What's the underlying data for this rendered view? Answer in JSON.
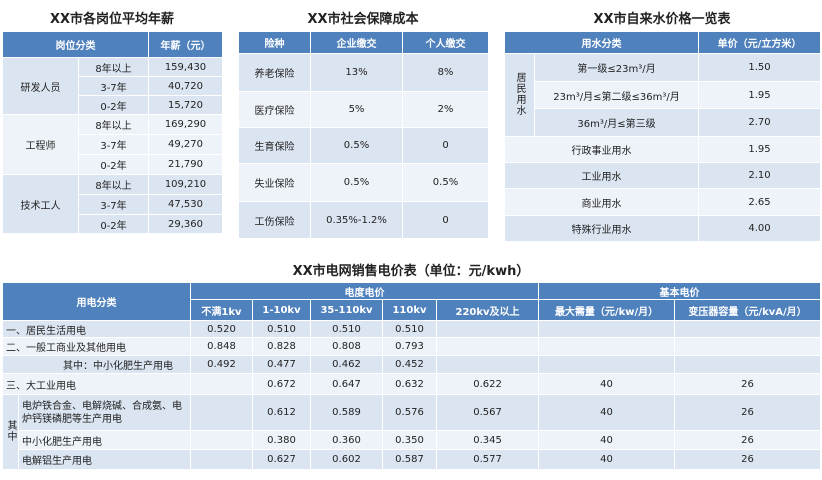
{
  "salary": {
    "title": "XX市各岗位平均年薪",
    "headers": [
      "岗位分类",
      "年薪（元）"
    ],
    "groups": [
      {
        "name": "研发人员",
        "rows": [
          [
            "8年以上",
            "159,430"
          ],
          [
            "3-7年",
            "40,720"
          ],
          [
            "0-2年",
            "15,720"
          ]
        ]
      },
      {
        "name": "工程师",
        "rows": [
          [
            "8年以上",
            "169,290"
          ],
          [
            "3-7年",
            "49,270"
          ],
          [
            "0-2年",
            "21,790"
          ]
        ]
      },
      {
        "name": "技术工人",
        "rows": [
          [
            "8年以上",
            "109,210"
          ],
          [
            "3-7年",
            "47,530"
          ],
          [
            "0-2年",
            "29,360"
          ]
        ]
      }
    ]
  },
  "social": {
    "title": "XX市社会保障成本",
    "headers": [
      "险种",
      "企业缴交",
      "个人缴交"
    ],
    "rows": [
      [
        "养老保险",
        "13%",
        "8%"
      ],
      [
        "医疗保险",
        "5%",
        "2%"
      ],
      [
        "生育保险",
        "0.5%",
        "0"
      ],
      [
        "失业保险",
        "0.5%",
        "0.5%"
      ],
      [
        "工伤保险",
        "0.35%-1.2%",
        "0"
      ]
    ]
  },
  "water": {
    "title": "XX市自来水价格一览表",
    "headers": [
      "用水分类",
      "单价（元/立方米）"
    ],
    "resident_label": "居民用水",
    "resident_rows": [
      [
        "第一级≤23m³/月",
        "1.50"
      ],
      [
        "23m³/月≤第二级≤36m³/月",
        "1.95"
      ],
      [
        "36m³/月≤第三级",
        "2.70"
      ]
    ],
    "other_rows": [
      [
        "行政事业用水",
        "1.95"
      ],
      [
        "工业用水",
        "2.10"
      ],
      [
        "商业用水",
        "2.65"
      ],
      [
        "特殊行业用水",
        "4.00"
      ]
    ]
  },
  "power": {
    "title": "XX市电网销售电价表（单位：元/kwh）",
    "header_category": "用电分类",
    "header_energy": "电度电价",
    "header_basic": "基本电价",
    "sub_headers": [
      "不满1kv",
      "1-10kv",
      "35-110kv",
      "110kv",
      "220kv及以上",
      "最大需量（元/kw/月）",
      "变压器容量（元/kvA/月）"
    ],
    "rows": [
      [
        "一、居民生活用电",
        "0.520",
        "0.510",
        "0.510",
        "0.510",
        "",
        "",
        ""
      ],
      [
        "二、一般工商业及其他用电",
        "0.848",
        "0.828",
        "0.808",
        "0.793",
        "",
        "",
        ""
      ],
      [
        "其中：中小化肥生产用电",
        "0.492",
        "0.477",
        "0.462",
        "0.452",
        "",
        "",
        ""
      ],
      [
        "三、大工业用电",
        "",
        "0.672",
        "0.647",
        "0.632",
        "0.622",
        "40",
        "26"
      ]
    ],
    "sub_label": "其中",
    "sub_rows": [
      [
        "电炉铁合金、电解烧碱、合成氨、电炉钙镁磷肥等生产用电",
        "",
        "0.612",
        "0.589",
        "0.576",
        "0.567",
        "40",
        "26"
      ],
      [
        "中小化肥生产用电",
        "",
        "0.380",
        "0.360",
        "0.350",
        "0.345",
        "40",
        "26"
      ],
      [
        "电解铝生产用电",
        "",
        "0.627",
        "0.602",
        "0.587",
        "0.577",
        "40",
        "26"
      ]
    ]
  }
}
